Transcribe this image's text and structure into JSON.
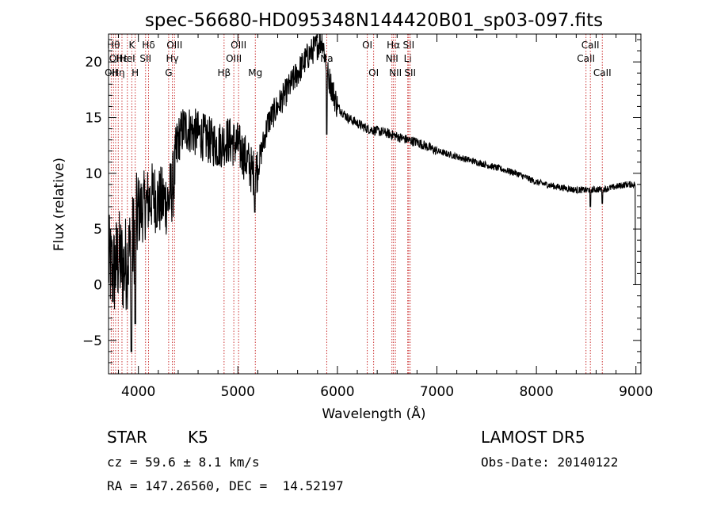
{
  "chart_data": {
    "type": "line",
    "title": "spec-56680-HD095348N144420B01_sp03-097.fits",
    "xlabel": "Wavelength (Å)",
    "ylabel": "Flux (relative)",
    "xlim": [
      3700,
      9050
    ],
    "ylim": [
      -8,
      22.5
    ],
    "x_ticks": [
      4000,
      5000,
      6000,
      7000,
      8000,
      9000
    ],
    "y_ticks": [
      -5,
      0,
      5,
      10,
      15,
      20
    ],
    "grid": false,
    "line_color": "#000000",
    "marker_color": "#cc3333",
    "spectrum_anchors": [
      {
        "x": 3700,
        "y": 2.0
      },
      {
        "x": 3750,
        "y": 1.0
      },
      {
        "x": 3800,
        "y": 2.5
      },
      {
        "x": 3850,
        "y": 1.5
      },
      {
        "x": 3900,
        "y": 2.5
      },
      {
        "x": 3950,
        "y": 4.0
      },
      {
        "x": 4000,
        "y": 6.5
      },
      {
        "x": 4050,
        "y": 7.0
      },
      {
        "x": 4100,
        "y": 7.5
      },
      {
        "x": 4150,
        "y": 8.0
      },
      {
        "x": 4200,
        "y": 7.5
      },
      {
        "x": 4250,
        "y": 7.5
      },
      {
        "x": 4300,
        "y": 7.5
      },
      {
        "x": 4350,
        "y": 9.0
      },
      {
        "x": 4400,
        "y": 13.0
      },
      {
        "x": 4450,
        "y": 14.0
      },
      {
        "x": 4500,
        "y": 14.0
      },
      {
        "x": 4600,
        "y": 13.5
      },
      {
        "x": 4700,
        "y": 13.0
      },
      {
        "x": 4800,
        "y": 12.5
      },
      {
        "x": 4900,
        "y": 13.0
      },
      {
        "x": 5000,
        "y": 12.5
      },
      {
        "x": 5100,
        "y": 11.0
      },
      {
        "x": 5150,
        "y": 10.0
      },
      {
        "x": 5200,
        "y": 10.5
      },
      {
        "x": 5300,
        "y": 14.5
      },
      {
        "x": 5400,
        "y": 16.0
      },
      {
        "x": 5500,
        "y": 17.5
      },
      {
        "x": 5600,
        "y": 19.0
      },
      {
        "x": 5700,
        "y": 20.5
      },
      {
        "x": 5800,
        "y": 21.5
      },
      {
        "x": 5850,
        "y": 22.0
      },
      {
        "x": 5900,
        "y": 19.0
      },
      {
        "x": 6000,
        "y": 16.0
      },
      {
        "x": 6100,
        "y": 15.0
      },
      {
        "x": 6200,
        "y": 14.5
      },
      {
        "x": 6300,
        "y": 14.0
      },
      {
        "x": 6400,
        "y": 13.8
      },
      {
        "x": 6500,
        "y": 13.6
      },
      {
        "x": 6600,
        "y": 13.3
      },
      {
        "x": 6700,
        "y": 13.0
      },
      {
        "x": 6800,
        "y": 12.8
      },
      {
        "x": 7000,
        "y": 12.0
      },
      {
        "x": 7200,
        "y": 11.5
      },
      {
        "x": 7400,
        "y": 11.0
      },
      {
        "x": 7600,
        "y": 10.5
      },
      {
        "x": 7800,
        "y": 10.0
      },
      {
        "x": 8000,
        "y": 9.2
      },
      {
        "x": 8200,
        "y": 8.8
      },
      {
        "x": 8400,
        "y": 8.5
      },
      {
        "x": 8500,
        "y": 8.5
      },
      {
        "x": 8700,
        "y": 8.6
      },
      {
        "x": 8900,
        "y": 9.0
      },
      {
        "x": 9000,
        "y": 9.0
      }
    ],
    "spectrum_features": [
      {
        "x": 3930,
        "y": -6.0
      },
      {
        "x": 3968,
        "y": -3.5
      },
      {
        "x": 5170,
        "y": 6.5
      },
      {
        "x": 5893,
        "y": 13.5
      },
      {
        "x": 8542,
        "y": 7.0
      },
      {
        "x": 8662,
        "y": 7.3
      },
      {
        "x": 9000,
        "y": 0.0
      }
    ],
    "line_markers": [
      {
        "x": 3727,
        "label": "OII",
        "row": 2
      },
      {
        "x": 3750,
        "label": "Hθ",
        "row": 0
      },
      {
        "x": 3771,
        "label": "OII",
        "row": 1
      },
      {
        "x": 3798,
        "label": "Hη",
        "row": 2
      },
      {
        "x": 3835,
        "label": "Hε",
        "row": 1
      },
      {
        "x": 3889,
        "label": "HeI",
        "row": 1
      },
      {
        "x": 3934,
        "label": "K",
        "row": 0
      },
      {
        "x": 3968,
        "label": "H",
        "row": 2
      },
      {
        "x": 4072,
        "label": "SII",
        "row": 1
      },
      {
        "x": 4102,
        "label": "Hδ",
        "row": 0
      },
      {
        "x": 4304,
        "label": "G",
        "row": 2
      },
      {
        "x": 4341,
        "label": "Hγ",
        "row": 1
      },
      {
        "x": 4363,
        "label": "OIII",
        "row": 0
      },
      {
        "x": 4861,
        "label": "Hβ",
        "row": 2
      },
      {
        "x": 4959,
        "label": "OIII",
        "row": 1
      },
      {
        "x": 5007,
        "label": "OIII",
        "row": 0
      },
      {
        "x": 5175,
        "label": "Mg",
        "row": 2
      },
      {
        "x": 5893,
        "label": "Na",
        "row": 1
      },
      {
        "x": 6300,
        "label": "OI",
        "row": 0
      },
      {
        "x": 6364,
        "label": "OI",
        "row": 2
      },
      {
        "x": 6548,
        "label": "NII",
        "row": 1
      },
      {
        "x": 6563,
        "label": "Hα",
        "row": 0
      },
      {
        "x": 6583,
        "label": "NII",
        "row": 2
      },
      {
        "x": 6707,
        "label": "Li",
        "row": 1
      },
      {
        "x": 6716,
        "label": "SII",
        "row": 0
      },
      {
        "x": 6731,
        "label": "SII",
        "row": 2
      },
      {
        "x": 8498,
        "label": "CaII",
        "row": 1
      },
      {
        "x": 8542,
        "label": "CaII",
        "row": 0
      },
      {
        "x": 8662,
        "label": "CaII",
        "row": 2
      }
    ]
  },
  "footer": {
    "object_class": "STAR",
    "subclass": "K5",
    "survey": "LAMOST DR5",
    "redshift": "cz = 59.6 ± 8.1 km/s",
    "obs_date": "Obs-Date: 20140122",
    "coords": "RA = 147.26560, DEC =  14.52197"
  }
}
